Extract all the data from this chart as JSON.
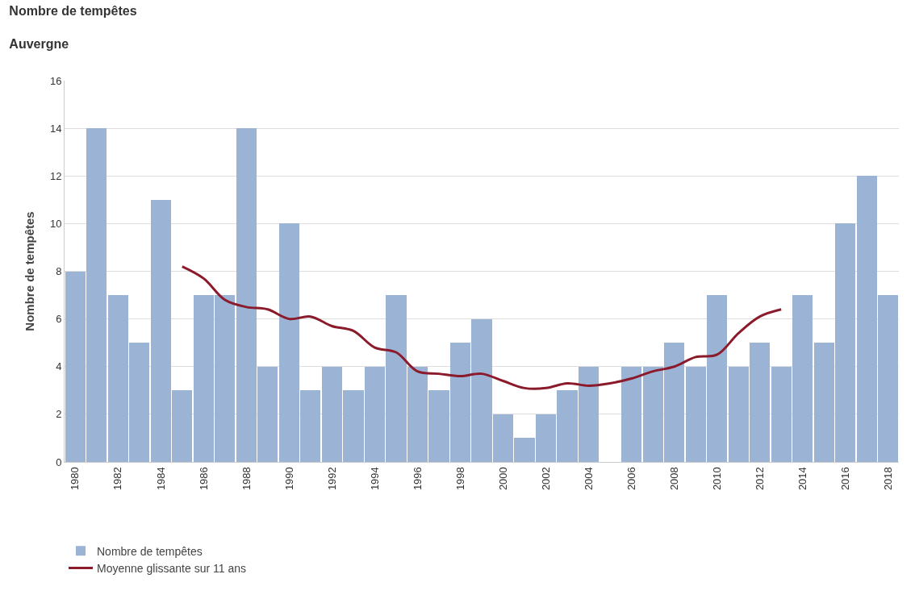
{
  "chart_data": {
    "type": "bar",
    "title": "Nombre de tempêtes",
    "subtitle": "Auvergne",
    "ylabel": "Nombre de tempêtes",
    "categories": [
      "1980",
      null,
      "1982",
      null,
      "1984",
      null,
      "1986",
      null,
      "1988",
      null,
      "1990",
      null,
      "1992",
      null,
      "1994",
      null,
      "1996",
      null,
      "1998",
      null,
      "2000",
      null,
      "2002",
      null,
      "2004",
      null,
      "2006",
      null,
      "2008",
      null,
      "2010",
      null,
      "2012",
      null,
      "2014",
      null,
      "2016",
      null,
      "2018"
    ],
    "series": [
      {
        "name": "Nombre de tempêtes",
        "color": "#9bb3d4",
        "values": [
          8,
          14,
          7,
          5,
          11,
          3,
          7,
          7,
          14,
          4,
          10,
          3,
          4,
          3,
          4,
          7,
          4,
          3,
          5,
          6,
          2,
          1,
          2,
          3,
          4,
          0,
          4,
          4,
          5,
          4,
          7,
          4,
          5,
          4,
          7,
          5,
          10,
          12,
          7
        ]
      },
      {
        "name": "Moyenne glissante sur 11 ans",
        "type": "line",
        "color": "#8b1a2b",
        "values": [
          null,
          null,
          null,
          null,
          null,
          8.2,
          7.7,
          6.8,
          6.5,
          6.4,
          6.0,
          6.1,
          5.7,
          5.5,
          4.8,
          4.6,
          3.8,
          3.7,
          3.6,
          3.7,
          3.4,
          3.1,
          3.1,
          3.3,
          3.2,
          3.3,
          3.5,
          3.8,
          4.0,
          4.4,
          4.5,
          5.4,
          6.1,
          6.4,
          null,
          null,
          null,
          null,
          null
        ]
      }
    ],
    "ylim": [
      0,
      16
    ],
    "yticks": [
      0,
      2,
      4,
      6,
      8,
      10,
      12,
      14,
      16
    ],
    "grid": "y",
    "legend": "bottom left"
  }
}
